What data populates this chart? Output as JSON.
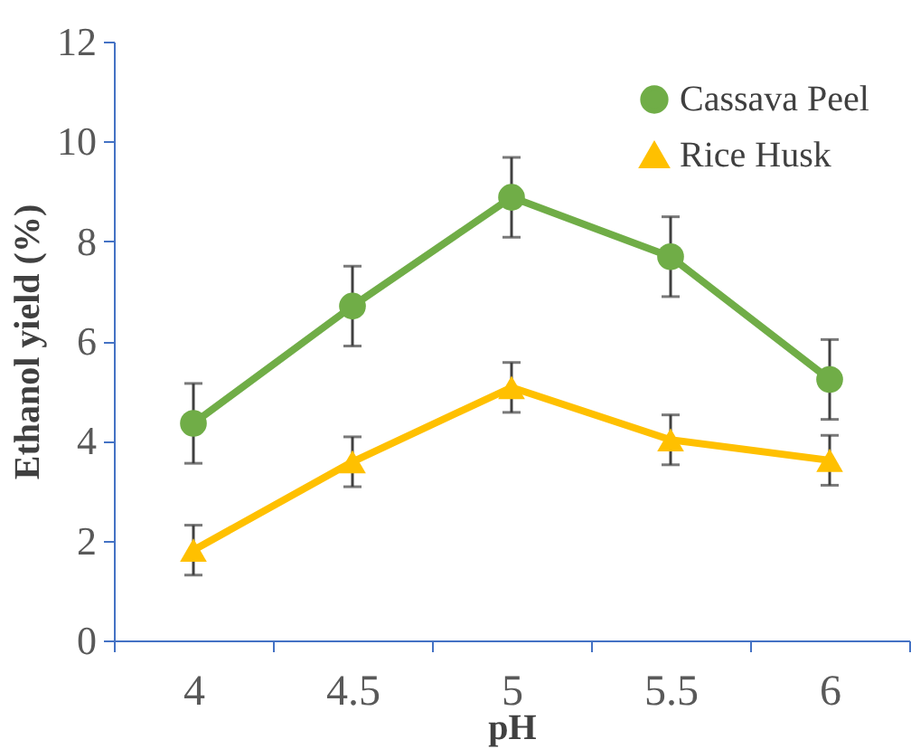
{
  "chart_data": {
    "type": "line",
    "xlabel": "pH",
    "ylabel": "Ethanol yield (%)",
    "categories": [
      "4",
      "4.5",
      "5",
      "5.5",
      "6"
    ],
    "ylim": [
      0,
      12
    ],
    "yticks": [
      0,
      2,
      4,
      6,
      8,
      10,
      12
    ],
    "grid": false,
    "legend": "top right",
    "series": [
      {
        "name": "Cassava Peel",
        "color": "#70ad47",
        "marker": "circle",
        "values": [
          4.35,
          6.7,
          8.88,
          7.69,
          5.23
        ],
        "errors": [
          0.8,
          0.8,
          0.8,
          0.8,
          0.8
        ]
      },
      {
        "name": "Rice Husk",
        "color": "#ffc000",
        "marker": "triangle",
        "values": [
          1.81,
          3.58,
          5.07,
          4.02,
          3.61
        ],
        "errors": [
          0.5,
          0.5,
          0.5,
          0.5,
          0.5
        ]
      }
    ]
  }
}
